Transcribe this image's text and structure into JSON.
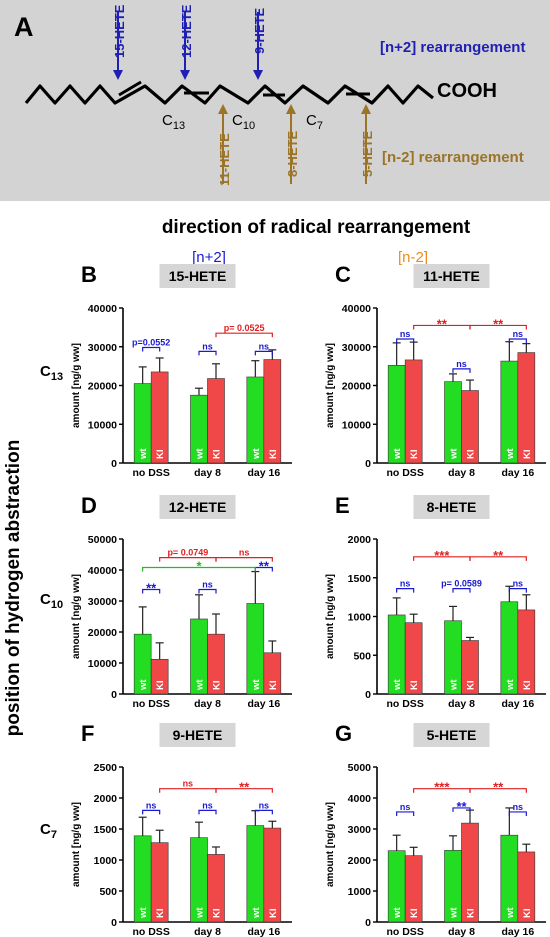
{
  "panel_a": {
    "letter": "A",
    "cooh": "COOH",
    "carbons": [
      "C13",
      "C10",
      "C7"
    ],
    "n_plus_2_label": "[n+2] rearrangement",
    "n_minus_2_label": "[n-2] rearrangement",
    "top_hetes": [
      "15-HETE",
      "12-HETE",
      "9-HETE"
    ],
    "bottom_hetes": [
      "11-HETE",
      "8-HETE",
      "5-HETE"
    ],
    "colors": {
      "background": "#d3d3d3",
      "n_plus_2": "#1f1fb4",
      "n_minus_2": "#9b7428"
    }
  },
  "header": {
    "direction_title": "direction of radical rearrangement",
    "n_plus_2": "[n+2]",
    "n_minus_2": "[n-2]",
    "side_title": "position of hydrogen abstraction",
    "row_labels": [
      "C13",
      "C10",
      "C7"
    ]
  },
  "colors": {
    "wt": "#22dd22",
    "ki": "#f04848",
    "blue": "#1a1ad0",
    "red": "#e02020",
    "green": "#22bb22",
    "title_box": "#d6d6d6"
  },
  "chart_data": [
    {
      "type": "bar",
      "letter": "B",
      "title": "15-HETE",
      "ylabel": "amount [ng/g ww]",
      "categories": [
        "no DSS",
        "day 8",
        "day 16"
      ],
      "ylim": [
        0,
        40000
      ],
      "yticks": [
        "0",
        "10000",
        "20000",
        "30000",
        "40000"
      ],
      "bar_labels": [
        "wt",
        "KI"
      ],
      "series": [
        {
          "name": "wt",
          "values": [
            20500,
            17500,
            22200
          ],
          "errors": [
            4300,
            1800,
            4200
          ]
        },
        {
          "name": "KI",
          "values": [
            23500,
            21800,
            26700
          ],
          "errors": [
            3600,
            3800,
            2500
          ]
        }
      ],
      "annotations": [
        {
          "type": "within",
          "group": 0,
          "text": "p=0.0552",
          "color": "blue",
          "y": 29800
        },
        {
          "type": "within",
          "group": 1,
          "text": "ns",
          "color": "blue",
          "y": 28800
        },
        {
          "type": "within",
          "group": 2,
          "text": "ns",
          "color": "blue",
          "y": 28800
        },
        {
          "type": "between",
          "from": 1,
          "to": 2,
          "series": 1,
          "text": "p= 0.0525",
          "color": "red",
          "y": 33500
        }
      ]
    },
    {
      "type": "bar",
      "letter": "C",
      "title": "11-HETE",
      "ylabel": "amount [ng/g ww]",
      "categories": [
        "no DSS",
        "day 8",
        "day 16"
      ],
      "ylim": [
        0,
        40000
      ],
      "yticks": [
        "0",
        "10000",
        "20000",
        "30000",
        "40000"
      ],
      "bar_labels": [
        "wt",
        "KI"
      ],
      "series": [
        {
          "name": "wt",
          "values": [
            25200,
            21000,
            26300
          ],
          "errors": [
            5800,
            2000,
            5000
          ]
        },
        {
          "name": "KI",
          "values": [
            26600,
            18700,
            28500
          ],
          "errors": [
            4600,
            2700,
            2300
          ]
        }
      ],
      "annotations": [
        {
          "type": "within",
          "group": 0,
          "text": "ns",
          "color": "blue",
          "y": 32000
        },
        {
          "type": "within",
          "group": 1,
          "text": "ns",
          "color": "blue",
          "y": 24300
        },
        {
          "type": "within",
          "group": 2,
          "text": "ns",
          "color": "blue",
          "y": 32000
        },
        {
          "type": "between",
          "from": 0,
          "to": 1,
          "series": 1,
          "text": "**",
          "color": "red",
          "y": 35500
        },
        {
          "type": "between",
          "from": 1,
          "to": 2,
          "series": 1,
          "text": "**",
          "color": "red",
          "y": 35500
        }
      ]
    },
    {
      "type": "bar",
      "letter": "D",
      "title": "12-HETE",
      "ylabel": "amount [ng/g ww]",
      "categories": [
        "no DSS",
        "day 8",
        "day 16"
      ],
      "ylim": [
        0,
        50000
      ],
      "yticks": [
        "0",
        "10000",
        "20000",
        "30000",
        "40000",
        "50000"
      ],
      "bar_labels": [
        "wt",
        "KI"
      ],
      "series": [
        {
          "name": "wt",
          "values": [
            19300,
            24200,
            29200
          ],
          "errors": [
            8800,
            7800,
            10300
          ]
        },
        {
          "name": "KI",
          "values": [
            11200,
            19300,
            13300
          ],
          "errors": [
            5300,
            6500,
            3800
          ]
        }
      ],
      "annotations": [
        {
          "type": "within",
          "group": 0,
          "text": "**",
          "color": "blue",
          "y": 33700
        },
        {
          "type": "within",
          "group": 1,
          "text": "ns",
          "color": "blue",
          "y": 33700
        },
        {
          "type": "within",
          "group": 2,
          "text": "**",
          "color": "blue",
          "y": 40800
        },
        {
          "type": "between",
          "from": 0,
          "to": 1,
          "series": 1,
          "text": "p= 0.0749",
          "color": "red",
          "y": 44000
        },
        {
          "type": "between",
          "from": 1,
          "to": 2,
          "series": 1,
          "text": "ns",
          "color": "red",
          "y": 44000
        },
        {
          "type": "between",
          "from": 0,
          "to": 2,
          "series": 0,
          "text": "*",
          "color": "green",
          "y": 40800
        }
      ]
    },
    {
      "type": "bar",
      "letter": "E",
      "title": "8-HETE",
      "ylabel": "amount [ng/g ww]",
      "categories": [
        "no DSS",
        "day 8",
        "day 16"
      ],
      "ylim": [
        0,
        2000
      ],
      "yticks": [
        "0",
        "500",
        "1000",
        "1500",
        "2000"
      ],
      "bar_labels": [
        "wt",
        "KI"
      ],
      "series": [
        {
          "name": "wt",
          "values": [
            1020,
            945,
            1190
          ],
          "errors": [
            220,
            185,
            200
          ]
        },
        {
          "name": "KI",
          "values": [
            920,
            690,
            1085
          ],
          "errors": [
            110,
            40,
            195
          ]
        }
      ],
      "annotations": [
        {
          "type": "within",
          "group": 0,
          "text": "ns",
          "color": "blue",
          "y": 1360
        },
        {
          "type": "within",
          "group": 1,
          "text": "p= 0.0589",
          "color": "blue",
          "y": 1360
        },
        {
          "type": "within",
          "group": 2,
          "text": "ns",
          "color": "blue",
          "y": 1360
        },
        {
          "type": "between",
          "from": 0,
          "to": 1,
          "series": 1,
          "text": "***",
          "color": "red",
          "y": 1770
        },
        {
          "type": "between",
          "from": 1,
          "to": 2,
          "series": 1,
          "text": "**",
          "color": "red",
          "y": 1770
        }
      ]
    },
    {
      "type": "bar",
      "letter": "F",
      "title": "9-HETE",
      "ylabel": "amount [ng/g ww]",
      "categories": [
        "no DSS",
        "day 8",
        "day 16"
      ],
      "ylim": [
        0,
        2500
      ],
      "yticks": [
        "0",
        "500",
        "1000",
        "1500",
        "2000",
        "2500"
      ],
      "bar_labels": [
        "wt",
        "KI"
      ],
      "series": [
        {
          "name": "wt",
          "values": [
            1390,
            1360,
            1555
          ],
          "errors": [
            300,
            250,
            240
          ]
        },
        {
          "name": "KI",
          "values": [
            1280,
            1090,
            1515
          ],
          "errors": [
            200,
            120,
            110
          ]
        }
      ],
      "annotations": [
        {
          "type": "within",
          "group": 0,
          "text": "ns",
          "color": "blue",
          "y": 1800
        },
        {
          "type": "within",
          "group": 1,
          "text": "ns",
          "color": "blue",
          "y": 1800
        },
        {
          "type": "within",
          "group": 2,
          "text": "ns",
          "color": "blue",
          "y": 1800
        },
        {
          "type": "between",
          "from": 0,
          "to": 1,
          "series": 1,
          "text": "ns",
          "color": "red",
          "y": 2150
        },
        {
          "type": "between",
          "from": 1,
          "to": 2,
          "series": 1,
          "text": "**",
          "color": "red",
          "y": 2150
        }
      ]
    },
    {
      "type": "bar",
      "letter": "G",
      "title": "5-HETE",
      "ylabel": "amount [ng/g ww]",
      "categories": [
        "no DSS",
        "day 8",
        "day 16"
      ],
      "ylim": [
        0,
        5000
      ],
      "yticks": [
        "0",
        "1000",
        "2000",
        "3000",
        "4000",
        "5000"
      ],
      "bar_labels": [
        "wt",
        "KI"
      ],
      "series": [
        {
          "name": "wt",
          "values": [
            2300,
            2310,
            2800
          ],
          "errors": [
            500,
            470,
            880
          ]
        },
        {
          "name": "KI",
          "values": [
            2140,
            3190,
            2260
          ],
          "errors": [
            270,
            420,
            250
          ]
        }
      ],
      "annotations": [
        {
          "type": "within",
          "group": 0,
          "text": "ns",
          "color": "blue",
          "y": 3550
        },
        {
          "type": "within",
          "group": 1,
          "text": "**",
          "color": "blue",
          "y": 3680
        },
        {
          "type": "within",
          "group": 2,
          "text": "ns",
          "color": "blue",
          "y": 3550
        },
        {
          "type": "between",
          "from": 0,
          "to": 1,
          "series": 1,
          "text": "***",
          "color": "red",
          "y": 4300
        },
        {
          "type": "between",
          "from": 1,
          "to": 2,
          "series": 1,
          "text": "**",
          "color": "red",
          "y": 4300
        }
      ]
    }
  ]
}
